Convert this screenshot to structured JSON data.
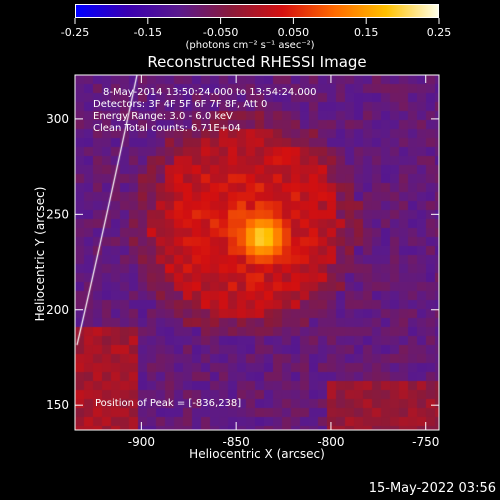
{
  "colorbar": {
    "ticks": [
      "-0.25",
      "-0.15",
      "-0.050",
      "0.050",
      "0.15",
      "0.25"
    ],
    "unit_label": "(photons cm⁻² s⁻¹ asec⁻²)"
  },
  "title": "Reconstructed RHESSI Image",
  "annotations": {
    "time_range": "8-May-2014 13:50:24.000 to 13:54:24.000",
    "detectors": "Detectors: 3F 4F 5F 6F 7F 8F, Att 0",
    "energy_range": "Energy Range: 3.0 - 6.0 keV",
    "clean_counts": "Clean     Total counts: 6.71E+04",
    "peak_position": "Position of Peak = [-836,238]"
  },
  "axes": {
    "xlabel": "Heliocentric X (arcsec)",
    "ylabel": "Heliocentric Y (arcsec)",
    "xticks": [
      -900,
      -850,
      -800,
      -750
    ],
    "yticks": [
      150,
      200,
      250,
      300
    ],
    "xlim": [
      -935,
      -743
    ],
    "ylim": [
      137,
      323
    ]
  },
  "image_data": {
    "peak": [
      -836,
      238
    ],
    "colormap": [
      "#0000ff",
      "#3a00b0",
      "#5a1a8c",
      "#8a1a3a",
      "#d41010",
      "#ff6a00",
      "#ffc000",
      "#ffffe8"
    ]
  },
  "footer": {
    "date": "15-May-2022 03:56"
  }
}
